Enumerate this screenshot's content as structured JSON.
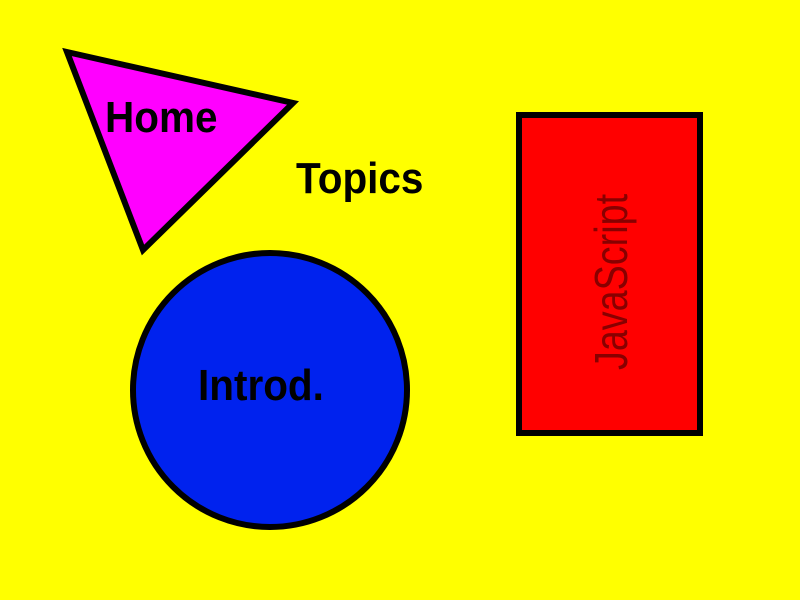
{
  "background_color": "#ffff00",
  "nav": {
    "home": {
      "label": "Home",
      "color": "#ff00ff"
    },
    "topics": {
      "label": "Topics"
    },
    "introd": {
      "label": "Introd.",
      "color": "#0022ee"
    },
    "javascript": {
      "label": "JavaScript",
      "color": "#ff0000",
      "text_color": "#880000"
    }
  }
}
